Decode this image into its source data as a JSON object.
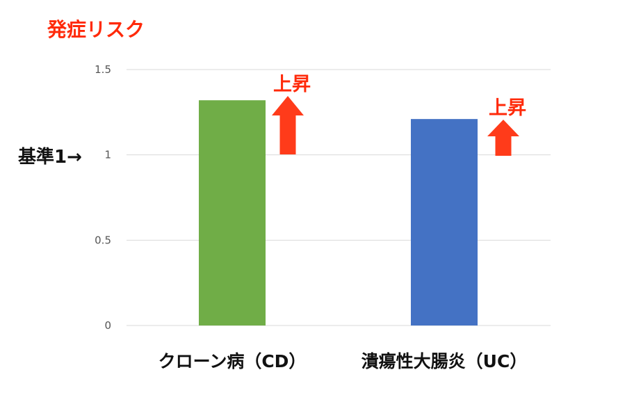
{
  "chart_data": {
    "type": "bar",
    "title": "発症リスク",
    "categories": [
      "クローン病（CD）",
      "潰瘍性大腸炎（UC）"
    ],
    "values": [
      1.32,
      1.21
    ],
    "colors": [
      "#70ad47",
      "#4472c4"
    ],
    "ylim": [
      0,
      1.5
    ],
    "yticks": [
      "0",
      "0.5",
      "1",
      "1.5"
    ],
    "grid": true,
    "annotations": {
      "baseline": "基準1→",
      "rise_label": "上昇",
      "arrow_color": "#ff3b1a"
    }
  }
}
